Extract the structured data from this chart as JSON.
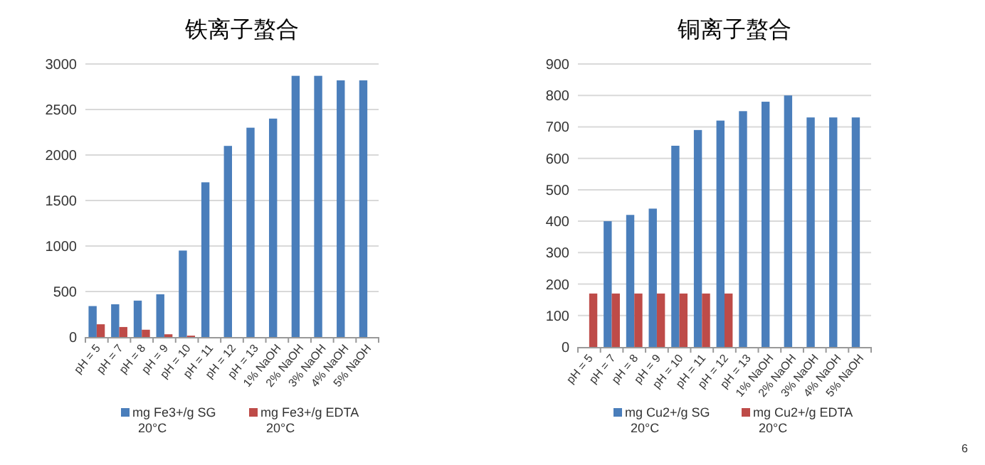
{
  "chart_data": [
    {
      "type": "bar",
      "title": "铁离子螯合",
      "categories": [
        "pH = 5",
        "pH = 7",
        "pH = 8",
        "pH = 9",
        "pH = 10",
        "pH = 11",
        "pH = 12",
        "pH = 13",
        "1% NaOH",
        "2% NaOH",
        "3% NaOH",
        "4% NaOH",
        "5% NaOH"
      ],
      "series": [
        {
          "name": "mg Fe3+/g SG\n20°C",
          "color": "#4a7ebb",
          "values": [
            340,
            360,
            400,
            470,
            950,
            1700,
            2100,
            2300,
            2400,
            2870,
            2870,
            2820,
            2820
          ]
        },
        {
          "name": "mg Fe3+/g EDTA\n20°C",
          "color": "#be4b48",
          "values": [
            140,
            110,
            80,
            30,
            15,
            null,
            null,
            null,
            null,
            null,
            null,
            null,
            null
          ]
        }
      ],
      "ylim": [
        0,
        3000
      ],
      "yticks": [
        0,
        500,
        1000,
        1500,
        2000,
        2500,
        3000
      ],
      "grid": "y",
      "legend": "bottom"
    },
    {
      "type": "bar",
      "title": "铜离子螯合",
      "categories": [
        "pH = 5",
        "pH = 7",
        "pH = 8",
        "pH = 9",
        "pH = 10",
        "pH = 11",
        "pH = 12",
        "pH = 13",
        "1% NaOH",
        "2% NaOH",
        "3% NaOH",
        "4% NaOH",
        "5% NaOH"
      ],
      "series": [
        {
          "name": "mg Cu2+/g SG\n20°C",
          "color": "#4a7ebb",
          "values": [
            null,
            400,
            420,
            440,
            640,
            690,
            720,
            750,
            780,
            800,
            730,
            730,
            730
          ]
        },
        {
          "name": "mg Cu2+/g EDTA\n20°C",
          "color": "#be4b48",
          "values": [
            170,
            170,
            170,
            170,
            170,
            170,
            170,
            null,
            null,
            null,
            null,
            null,
            null
          ]
        }
      ],
      "ylim": [
        0,
        900
      ],
      "yticks": [
        0,
        100,
        200,
        300,
        400,
        500,
        600,
        700,
        800,
        900
      ],
      "grid": "y",
      "legend": "bottom",
      "annotations": [
        "6"
      ]
    }
  ]
}
